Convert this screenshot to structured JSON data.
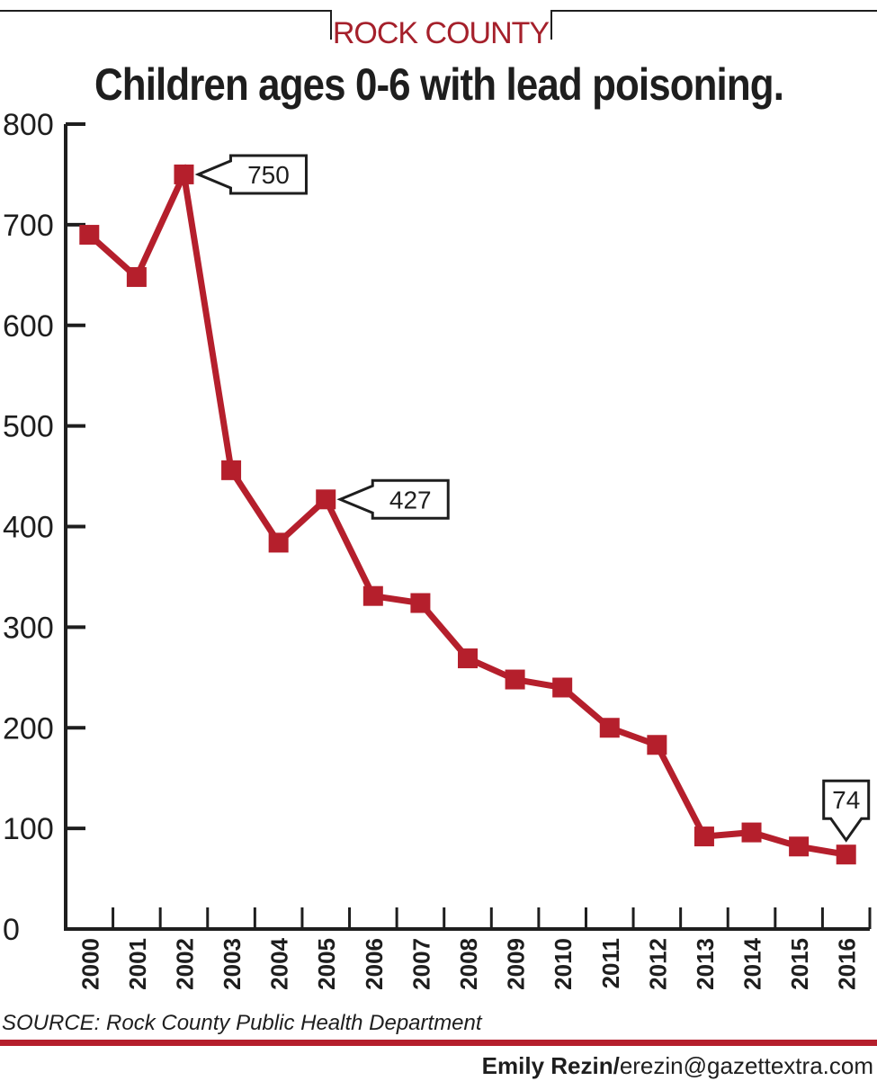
{
  "kicker": "ROCK COUNTY",
  "source": "SOURCE: Rock County Public Health Department",
  "credit": {
    "name": "Emily Rezin/",
    "email": "erezin@gazettextra.com"
  },
  "colors": {
    "series": "#b51f2c",
    "axis": "#1e1e1e",
    "rule": "#b51f2c"
  },
  "chart_data": {
    "type": "line",
    "title": "Children ages 0-6 with lead poisoning.",
    "xlabel": "",
    "ylabel": "",
    "ylim": [
      0,
      800
    ],
    "yticks": [
      0,
      100,
      200,
      300,
      400,
      500,
      600,
      700,
      800
    ],
    "grid": false,
    "x": [
      "2000",
      "2001",
      "2002",
      "2003",
      "2004",
      "2005",
      "2006",
      "2007",
      "2008",
      "2009",
      "2010",
      "2011",
      "2012",
      "2013",
      "2014",
      "2015",
      "2016"
    ],
    "series": [
      {
        "values": [
          690,
          648,
          750,
          456,
          384,
          427,
          331,
          324,
          269,
          248,
          240,
          200,
          183,
          92,
          96,
          82,
          74
        ]
      }
    ],
    "callouts": [
      {
        "index": 2,
        "label": "750",
        "side": "right"
      },
      {
        "index": 5,
        "label": "427",
        "side": "right"
      },
      {
        "index": 16,
        "label": "74",
        "side": "above"
      }
    ]
  }
}
